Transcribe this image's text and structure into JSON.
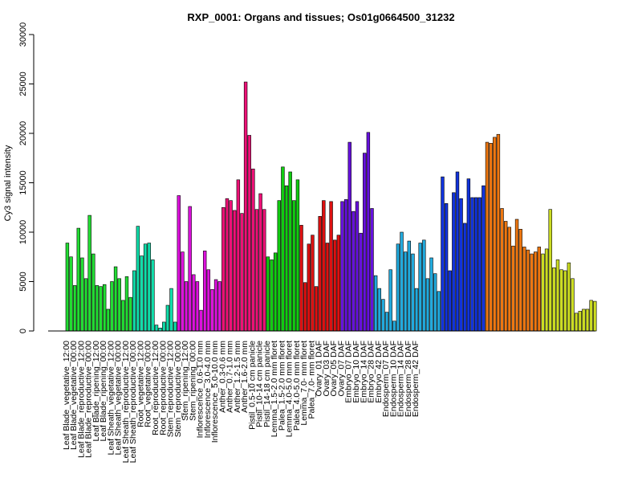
{
  "chart_data": {
    "type": "bar",
    "title": "RXP_0001: Organs and tissues; Os01g0664500_31232",
    "xlabel": "",
    "ylabel": "Cy3 signal intensity",
    "ylim": [
      0,
      30000
    ],
    "yticks": [
      0,
      5000,
      10000,
      15000,
      20000,
      25000,
      30000
    ],
    "grid": false,
    "legend": "none",
    "tick_labels": [
      "Leaf Blade_vegetative_12:00",
      "Leaf Blade_vegetative_00:00",
      "Leaf Blade_reproductive_12:00",
      "Leaf Blade_reproductive_00:00",
      "Leaf Blade_ripening_12:00",
      "Leaf Blade_ripening_00:00",
      "Leaf Sheath_vegetative_12:00",
      "Leaf Sheath_vegetative_00:00",
      "Leaf Sheath_reproductive_12:00",
      "Leaf Sheath_reproductive_00:00",
      "Root_vegetative_12:00",
      "Root_vegetative_00:00",
      "Root_reproductive_12:00",
      "Root_reproductive_00:00",
      "Stem_reproductive_12:00",
      "Stem_reproductive_00:00",
      "Stem_ripening_12:00",
      "Stem_ripening_00:00",
      "Inflorescence_0.6-1.0 mm",
      "Inflorescence_3.0-4.0 mm",
      "Inflorescence_5.0-10.0 mm",
      "Anther_0.3-0.6 mm",
      "Anther_0.7-1.0 mm",
      "Anther_1.2-1.5 mm",
      "Anther_1.6-2.0 mm",
      "Pistil_0.5-10 cm panicle",
      "Pistil_10-14 cm panicle",
      "Pistil_14-18 cm panicle",
      "Lemma_1.5-2.0 mm floret",
      "Palea_1.5-2.0 mm floret",
      "Lemma_4.0-5.0 mm floret",
      "Palea_4.0-5.0 mm floret",
      "Lemma_7.0- mm floret",
      "Palea_7.0- mm floret",
      "Ovary_01 DAF",
      "Ovary_03 DAF",
      "Ovary_05 DAF",
      "Ovary_07 DAF",
      "Embryo_07 DAF",
      "Embryo_10 DAF",
      "Embryo_14 DAF",
      "Embryo_28 DAF",
      "Embryo_42 DAF",
      "Endosperm_07 DAF",
      "Endosperm_10 DAF",
      "Endosperm_14 DAF",
      "Endosperm_28 DAF",
      "Endosperm_42 DAF"
    ],
    "groups": [
      {
        "color": "#22dd33",
        "values": [
          8900,
          7500,
          4600,
          10400,
          7400,
          5300,
          11700,
          7800,
          4600,
          4500,
          4700,
          2200,
          5000,
          6500,
          5300,
          3100,
          5500,
          3400
        ]
      },
      {
        "color": "#11ddaa",
        "values": [
          6100,
          10600,
          7600,
          8800,
          8900,
          7200,
          600,
          300,
          900,
          2600,
          4300,
          900
        ]
      },
      {
        "color": "#dd11dd",
        "values": [
          13700,
          8000,
          5000,
          12600,
          5700,
          5000,
          2100,
          8100,
          6200,
          4200,
          5200,
          5000
        ]
      },
      {
        "color": "#ee1177",
        "values": [
          12500,
          13400,
          13200,
          12200,
          15300,
          11900,
          25200,
          19800,
          16400,
          12300,
          13900,
          12300
        ]
      },
      {
        "color": "#11cc11",
        "values": [
          7500,
          7200,
          7900,
          13200,
          16600,
          14700,
          16100,
          13200,
          15300
        ]
      },
      {
        "color": "#dd1111",
        "values": [
          10700,
          4900,
          8800,
          9700,
          4500,
          11600,
          13200,
          8900,
          13100,
          9200,
          9700
        ]
      },
      {
        "color": "#6611dd",
        "values": [
          13100,
          13300,
          19100,
          12100,
          13100,
          9900,
          18000,
          20100,
          12400
        ]
      },
      {
        "color": "#22aadd",
        "values": [
          5600,
          4300,
          3200,
          1900,
          6200,
          1000,
          8800,
          10000,
          8000,
          9100,
          7800,
          4300,
          8900,
          9200,
          5300,
          7400,
          5800,
          4000
        ]
      },
      {
        "color": "#1133dd",
        "values": [
          15600,
          12900,
          6100,
          14000,
          16100,
          13400,
          10900,
          15400,
          13500,
          13500,
          13500,
          14700
        ]
      },
      {
        "color": "#ee7711",
        "values": [
          19100,
          19000,
          19600,
          19900,
          12400,
          11100,
          10500,
          8600,
          11300,
          10300,
          8500,
          8200,
          7800,
          8000,
          8500
        ]
      },
      {
        "color": "#ccdd22",
        "values": [
          7800,
          8300,
          12300,
          6400,
          7200,
          6200,
          6100,
          6900,
          5300,
          1800,
          2000,
          2200,
          2200,
          3100,
          3000
        ]
      }
    ]
  }
}
